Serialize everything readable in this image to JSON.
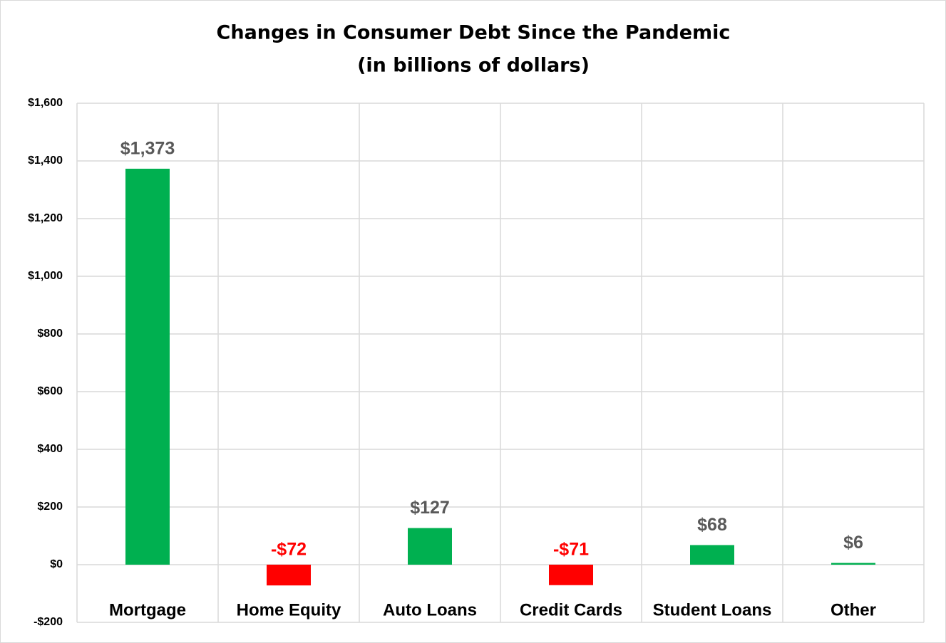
{
  "chart_data": {
    "type": "bar",
    "title": "Changes in Consumer Debt Since the Pandemic",
    "subtitle": "(in billions of dollars)",
    "categories": [
      "Mortgage",
      "Home Equity",
      "Auto Loans",
      "Credit Cards",
      "Student Loans",
      "Other"
    ],
    "values": [
      1373,
      -72,
      127,
      -71,
      68,
      6
    ],
    "value_labels": [
      "$1,373",
      "-$72",
      "$127",
      "-$71",
      "$68",
      "$6"
    ],
    "colors": [
      "#00b050",
      "#ff0000",
      "#00b050",
      "#ff0000",
      "#00b050",
      "#00b050"
    ],
    "value_label_colors": [
      "#595959",
      "#ff0000",
      "#595959",
      "#ff0000",
      "#595959",
      "#595959"
    ],
    "ylim": [
      -200,
      1600
    ],
    "yticks": [
      {
        "value": -200,
        "label": "-$200"
      },
      {
        "value": 0,
        "label": "$0"
      },
      {
        "value": 200,
        "label": "$200"
      },
      {
        "value": 400,
        "label": "$400"
      },
      {
        "value": 600,
        "label": "$600"
      },
      {
        "value": 800,
        "label": "$800"
      },
      {
        "value": 1000,
        "label": "$1,000"
      },
      {
        "value": 1200,
        "label": "$1,200"
      },
      {
        "value": 1400,
        "label": "$1,400"
      },
      {
        "value": 1600,
        "label": "$1,600"
      }
    ],
    "grid": true
  }
}
